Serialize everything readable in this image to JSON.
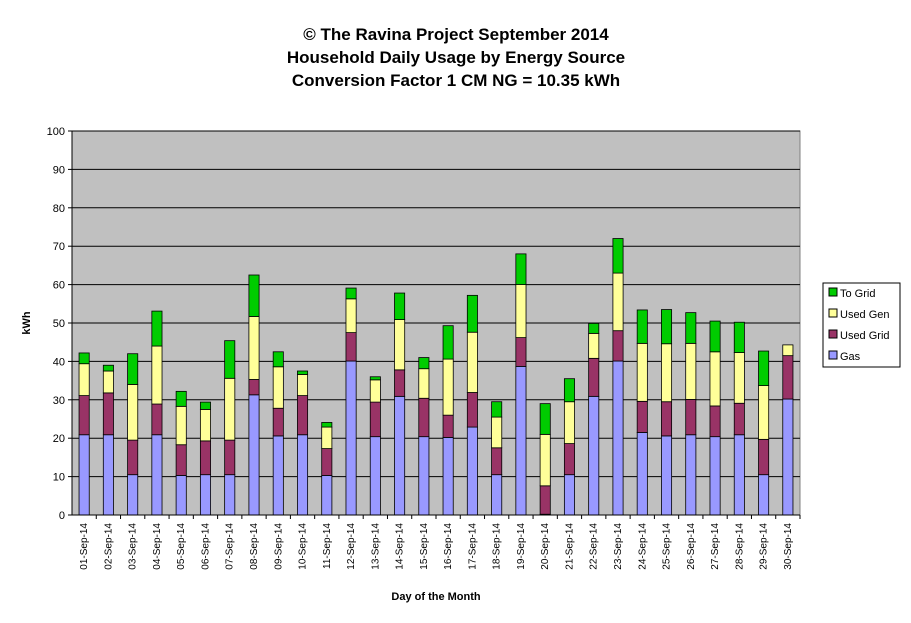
{
  "chart_data": {
    "type": "bar",
    "stacked": true,
    "title_lines": [
      "© The Ravina Project September 2014",
      "Household Daily Usage by Energy Source",
      "Conversion Factor 1 CM NG = 10.35 kWh"
    ],
    "xlabel": "Day of the Month",
    "ylabel": "kWh",
    "ylim": [
      0,
      100
    ],
    "yticks": [
      0,
      10,
      20,
      30,
      40,
      50,
      60,
      70,
      80,
      90,
      100
    ],
    "grid": true,
    "legend_position": "right",
    "categories": [
      "01-Sep-14",
      "02-Sep-14",
      "03-Sep-14",
      "04-Sep-14",
      "05-Sep-14",
      "06-Sep-14",
      "07-Sep-14",
      "08-Sep-14",
      "09-Sep-14",
      "10-Sep-14",
      "11-Sep-14",
      "12-Sep-14",
      "13-Sep-14",
      "14-Sep-14",
      "15-Sep-14",
      "16-Sep-14",
      "17-Sep-14",
      "18-Sep-14",
      "19-Sep-14",
      "20-Sep-14",
      "21-Sep-14",
      "22-Sep-14",
      "23-Sep-14",
      "24-Sep-14",
      "25-Sep-14",
      "26-Sep-14",
      "27-Sep-14",
      "28-Sep-14",
      "29-Sep-14",
      "30-Sep-14"
    ],
    "series": [
      {
        "name": "Gas",
        "color": "#9999ff",
        "values": [
          20.9,
          20.9,
          10.5,
          20.9,
          10.3,
          10.5,
          10.5,
          31.3,
          20.6,
          20.9,
          10.3,
          40.1,
          20.4,
          30.9,
          20.4,
          20.2,
          22.9,
          10.5,
          38.7,
          0.2,
          10.5,
          30.9,
          40.1,
          21.5,
          20.6,
          20.9,
          20.4,
          20.9,
          10.5,
          30.2
        ]
      },
      {
        "name": "Used Grid",
        "color": "#993366",
        "values": [
          10.2,
          10.9,
          9.0,
          8.0,
          8.0,
          8.8,
          9.0,
          4.0,
          7.2,
          10.2,
          7.0,
          7.4,
          9.0,
          6.9,
          10.0,
          5.8,
          9.0,
          7.0,
          7.5,
          7.4,
          8.1,
          9.9,
          7.9,
          8.1,
          8.9,
          9.2,
          8.0,
          8.2,
          9.2,
          11.3
        ]
      },
      {
        "name": "Used Gen",
        "color": "#ffff99",
        "values": [
          8.3,
          5.7,
          14.5,
          15.1,
          10.0,
          8.2,
          16.1,
          16.4,
          10.8,
          5.5,
          5.6,
          8.8,
          5.8,
          13.1,
          7.7,
          14.6,
          15.7,
          8.0,
          13.8,
          13.4,
          10.9,
          6.5,
          15.0,
          15.1,
          15.1,
          14.6,
          14.1,
          13.2,
          14.0,
          2.8
        ]
      },
      {
        "name": "To Grid",
        "color": "#00cc00",
        "values": [
          2.8,
          1.5,
          8.0,
          9.1,
          3.9,
          1.9,
          9.8,
          10.8,
          3.9,
          0.9,
          1.2,
          2.8,
          0.8,
          6.9,
          2.9,
          8.7,
          9.6,
          4.0,
          8.0,
          8.0,
          6.0,
          2.6,
          9.0,
          8.7,
          8.9,
          8.0,
          8.0,
          7.9,
          9.0,
          0
        ]
      }
    ]
  },
  "legend_order": [
    "To Grid",
    "Used Gen",
    "Used Grid",
    "Gas"
  ]
}
